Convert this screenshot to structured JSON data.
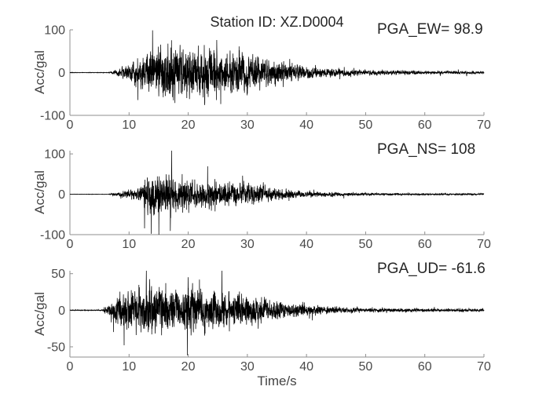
{
  "chart_data": {
    "type": "line",
    "title": "Station ID: XZ.D0004",
    "xlabel": "Time/s",
    "xlim": [
      0,
      70
    ],
    "xticks": [
      0,
      10,
      20,
      30,
      40,
      50,
      60,
      70
    ],
    "grid": false,
    "legend": "none",
    "colors": {
      "trace": "#000000",
      "spine": "#8f8f8f",
      "tick_label": "#4a4a4a",
      "text": "#262626"
    },
    "subplots": [
      {
        "name": "EW",
        "annotation": "PGA_EW= 98.9",
        "pga_gal": 98.9,
        "ylabel": "Acc/gal",
        "ylim": [
          -100,
          100
        ],
        "yticks": [
          -100,
          0,
          100
        ],
        "envelope_t_amp_gal": [
          [
            0,
            0.4
          ],
          [
            6.5,
            0.5
          ],
          [
            7.5,
            4
          ],
          [
            9,
            10
          ],
          [
            11,
            22
          ],
          [
            13,
            38
          ],
          [
            15,
            50
          ],
          [
            17,
            62
          ],
          [
            18,
            46
          ],
          [
            20,
            44
          ],
          [
            22,
            46
          ],
          [
            25,
            44
          ],
          [
            27,
            38
          ],
          [
            30,
            36
          ],
          [
            32,
            30
          ],
          [
            34,
            24
          ],
          [
            36,
            19
          ],
          [
            38,
            15
          ],
          [
            40,
            12
          ],
          [
            43,
            9
          ],
          [
            46,
            6.5
          ],
          [
            50,
            4.5
          ],
          [
            55,
            4
          ],
          [
            60,
            3.2
          ],
          [
            65,
            2.8
          ],
          [
            70,
            2.5
          ]
        ]
      },
      {
        "name": "NS",
        "annotation": "PGA_NS= 108",
        "pga_gal": 108,
        "ylabel": "Acc/gal",
        "ylim": [
          -100,
          108
        ],
        "yticks": [
          -100,
          0,
          100
        ],
        "envelope_t_amp_gal": [
          [
            0,
            0.4
          ],
          [
            6.5,
            0.5
          ],
          [
            7.5,
            4
          ],
          [
            9,
            9
          ],
          [
            11,
            16
          ],
          [
            12,
            28
          ],
          [
            13,
            50
          ],
          [
            14,
            65
          ],
          [
            15,
            60
          ],
          [
            16,
            54
          ],
          [
            18,
            52
          ],
          [
            20,
            44
          ],
          [
            22,
            40
          ],
          [
            24,
            36
          ],
          [
            26,
            34
          ],
          [
            28,
            32
          ],
          [
            30,
            34
          ],
          [
            32,
            27
          ],
          [
            34,
            21
          ],
          [
            36,
            16
          ],
          [
            38,
            12
          ],
          [
            40,
            9.5
          ],
          [
            43,
            7
          ],
          [
            46,
            5
          ],
          [
            50,
            3.8
          ],
          [
            55,
            3
          ],
          [
            60,
            2.6
          ],
          [
            65,
            2.2
          ],
          [
            70,
            2
          ]
        ]
      },
      {
        "name": "UD",
        "annotation": "PGA_UD= -61.6",
        "pga_gal": -61.6,
        "ylabel": "Acc/gal",
        "ylim": [
          -64,
          54
        ],
        "yticks": [
          -50,
          0,
          50
        ],
        "envelope_t_amp_gal": [
          [
            0,
            0.3
          ],
          [
            5.5,
            0.4
          ],
          [
            6.5,
            6
          ],
          [
            8,
            14
          ],
          [
            10,
            18
          ],
          [
            12,
            20
          ],
          [
            13.5,
            26
          ],
          [
            15,
            20
          ],
          [
            17,
            21
          ],
          [
            19,
            22
          ],
          [
            20,
            26
          ],
          [
            21,
            20
          ],
          [
            23,
            20
          ],
          [
            25,
            19
          ],
          [
            27,
            16
          ],
          [
            29,
            14
          ],
          [
            31,
            13
          ],
          [
            33,
            11
          ],
          [
            35,
            8.5
          ],
          [
            37,
            6.5
          ],
          [
            39,
            5.5
          ],
          [
            41,
            4.5
          ],
          [
            44,
            3.2
          ],
          [
            47,
            2.4
          ],
          [
            50,
            2
          ],
          [
            55,
            1.8
          ],
          [
            60,
            1.6
          ],
          [
            70,
            1.4
          ]
        ]
      }
    ]
  }
}
